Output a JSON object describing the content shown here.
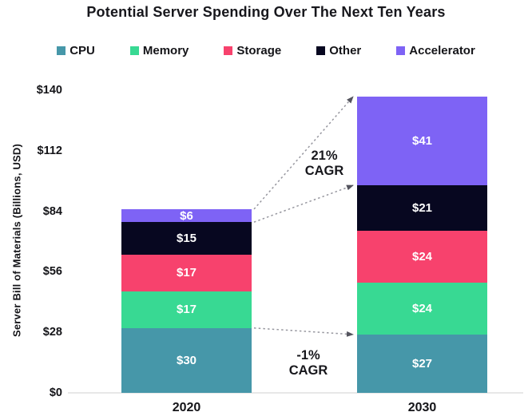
{
  "title": "Potential Server Spending Over The Next Ten Years",
  "legend": [
    {
      "label": "CPU",
      "color": "#4697A9"
    },
    {
      "label": "Memory",
      "color": "#38D993"
    },
    {
      "label": "Storage",
      "color": "#F7426D"
    },
    {
      "label": "Other",
      "color": "#070720"
    },
    {
      "label": "Accelerator",
      "color": "#7E63F5"
    }
  ],
  "chart_data": {
    "type": "bar",
    "stacked": true,
    "title": "Potential Server Spending Over The Next Ten Years",
    "categories": [
      "2020",
      "2030"
    ],
    "series": [
      {
        "name": "CPU",
        "color": "#4697A9",
        "values": [
          30,
          27
        ]
      },
      {
        "name": "Memory",
        "color": "#38D993",
        "values": [
          17,
          24
        ]
      },
      {
        "name": "Storage",
        "color": "#F7426D",
        "values": [
          17,
          24
        ]
      },
      {
        "name": "Other",
        "color": "#070720",
        "values": [
          15,
          21
        ]
      },
      {
        "name": "Accelerator",
        "color": "#7E63F5",
        "values": [
          6,
          41
        ]
      }
    ],
    "totals": [
      85,
      137
    ],
    "value_prefix": "$",
    "bar_label_color": "#FFFFFF",
    "ylabel": "Server Bill of Materials (Billions, USD)",
    "xlabel": "",
    "ylim": [
      0,
      140
    ],
    "yticks": [
      0,
      28,
      56,
      84,
      112,
      140
    ],
    "ytick_labels": [
      "$0",
      "$28",
      "$56",
      "$84",
      "$112",
      "$140"
    ],
    "grid": false,
    "legend_position": "top",
    "annotations": [
      {
        "id": "cagr-total",
        "lines": [
          "21%",
          "CAGR"
        ]
      },
      {
        "id": "cagr-cpu",
        "lines": [
          "-1%",
          "CAGR"
        ]
      }
    ],
    "arrows": [
      {
        "from_cat": 0,
        "from_value": 85,
        "to_cat": 1,
        "to_value": 137,
        "meaning": "total 2020 top to total 2030 top"
      },
      {
        "from_cat": 0,
        "from_value": 79,
        "to_cat": 1,
        "to_value": 96,
        "meaning": "accelerator bottom 2020 to accelerator bottom 2030"
      },
      {
        "from_cat": 0,
        "from_value": 30,
        "to_cat": 1,
        "to_value": 27,
        "meaning": "CPU top 2020 to CPU top 2030"
      }
    ],
    "arrow_style": {
      "dash_color": "#97979F",
      "head_color": "#54545E"
    },
    "axis_line_color": "#E8E8E8"
  }
}
